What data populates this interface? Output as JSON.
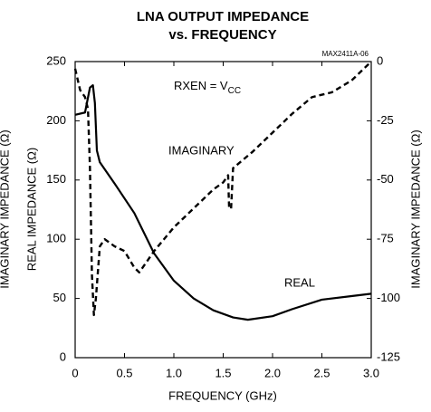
{
  "chart_data": {
    "type": "line",
    "title": [
      "LNA OUTPUT IMPEDANCE",
      "vs. FREQUENCY"
    ],
    "code": "MAX2411A-06",
    "condition": {
      "text": "RXEN = V",
      "subscript": "CC"
    },
    "xlabel": "FREQUENCY (GHz)",
    "ylabel": "REAL IMPEDANCE (Ω)",
    "ylabel_outer": "IMAGINARY IMPEDANCE (Ω)",
    "y2label": "IMAGINARY IMPEDANCE (Ω)",
    "xlim": [
      0,
      3
    ],
    "xticks": [
      0,
      0.5,
      {
        "value": 1,
        "label": "1.0"
      },
      1.5,
      {
        "value": 2,
        "label": "2.0"
      },
      2.5,
      {
        "value": 3,
        "label": "3.0"
      }
    ],
    "ylim": [
      0,
      250
    ],
    "yticks": [
      0,
      50,
      100,
      150,
      200,
      250
    ],
    "y2lim": [
      -125,
      0
    ],
    "y2ticks": [
      -125,
      -100,
      -75,
      -50,
      -25,
      0
    ],
    "grid": false,
    "series": [
      {
        "name": "REAL",
        "color": "#000000",
        "dash": false,
        "x": [
          0,
          0.1,
          0.15,
          0.18,
          0.2,
          0.22,
          0.25,
          0.4,
          0.6,
          0.8,
          1.0,
          1.2,
          1.4,
          1.6,
          1.75,
          2.0,
          2.2,
          2.5,
          2.8,
          3.0
        ],
        "values": [
          205,
          207,
          228,
          230,
          215,
          175,
          165,
          147,
          122,
          88,
          65,
          50,
          40,
          34,
          32,
          35,
          41,
          49,
          52,
          54
        ]
      },
      {
        "name": "IMAGINARY",
        "color": "#000000",
        "dash": true,
        "axis": "y2",
        "x": [
          0,
          0.05,
          0.1,
          0.13,
          0.15,
          0.17,
          0.19,
          0.21,
          0.25,
          0.3,
          0.4,
          0.5,
          0.6,
          0.65,
          0.8,
          1.0,
          1.2,
          1.4,
          1.5,
          1.55,
          1.56,
          1.58,
          1.6,
          1.8,
          2.0,
          2.2,
          2.4,
          2.6,
          2.8,
          3.0
        ],
        "values": [
          -3,
          -12,
          -15,
          -20,
          -45,
          -90,
          -107,
          -100,
          -78,
          -75,
          -78,
          -80,
          -87,
          -89,
          -80,
          -70,
          -62,
          -54,
          -51,
          -48,
          -62,
          -62,
          -45,
          -38,
          -30,
          -22,
          -15,
          -13,
          -8,
          0
        ]
      }
    ]
  }
}
